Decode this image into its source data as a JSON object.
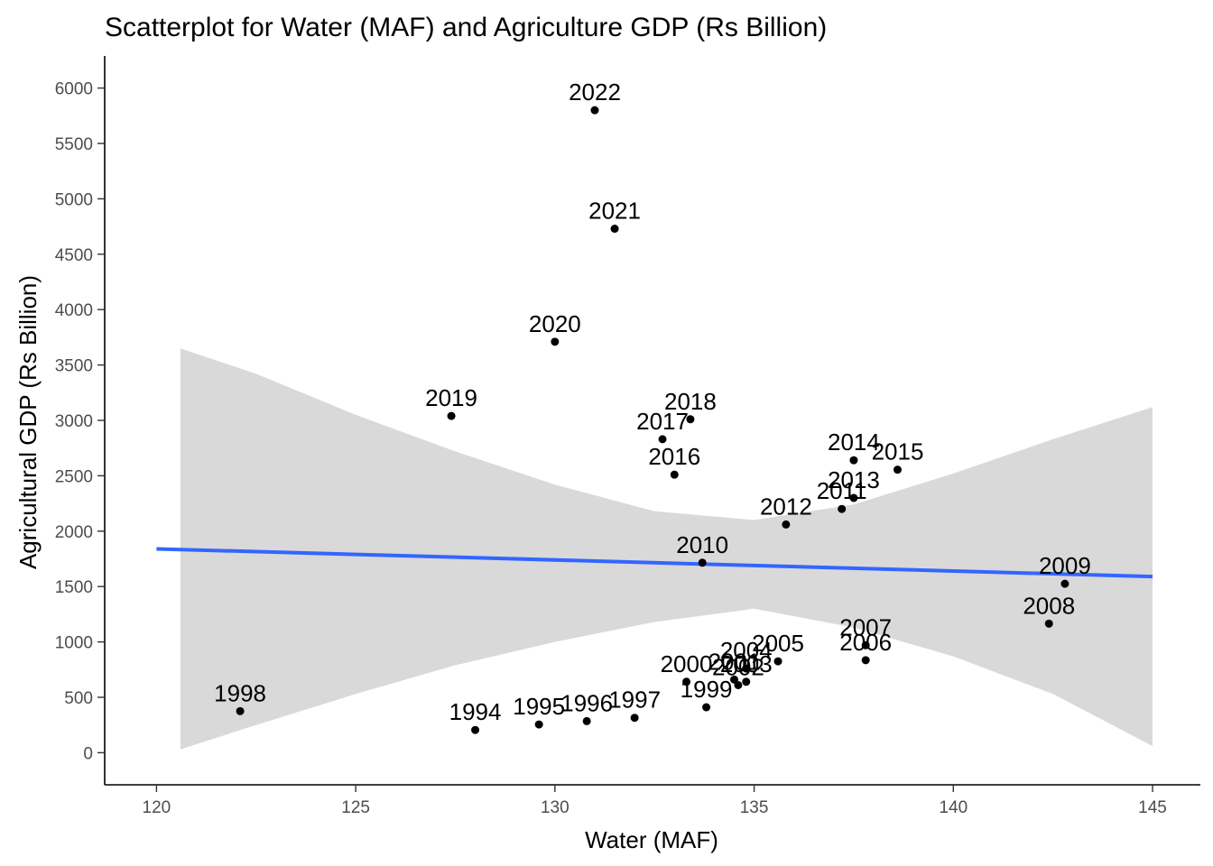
{
  "chart_data": {
    "type": "scatter",
    "title": "Scatterplot for Water (MAF) and Agriculture GDP (Rs Billion)",
    "xlabel": "Water (MAF)",
    "ylabel": "Agricultural GDP (Rs Billion)",
    "xlim": [
      118.7,
      146.2
    ],
    "ylim": [
      -290,
      6290
    ],
    "x_ticks": [
      120,
      125,
      130,
      135,
      140,
      145
    ],
    "y_ticks": [
      0,
      500,
      1000,
      1500,
      2000,
      2500,
      3000,
      3500,
      4000,
      4500,
      5000,
      5500,
      6000
    ],
    "grid": false,
    "colors": {
      "points": "#000000",
      "trend_line": "#3366FF",
      "confidence_band": "#D9D9D9",
      "axis": "#000000",
      "tick_labels": "#4D4D4D"
    },
    "points": [
      {
        "label": "1994",
        "x": 128.0,
        "y": 205
      },
      {
        "label": "1995",
        "x": 129.6,
        "y": 255
      },
      {
        "label": "1996",
        "x": 130.8,
        "y": 285
      },
      {
        "label": "1997",
        "x": 132.0,
        "y": 315
      },
      {
        "label": "1998",
        "x": 122.1,
        "y": 375
      },
      {
        "label": "1999",
        "x": 133.8,
        "y": 410
      },
      {
        "label": "2000",
        "x": 133.3,
        "y": 640
      },
      {
        "label": "2001",
        "x": 134.5,
        "y": 660
      },
      {
        "label": "2002",
        "x": 134.6,
        "y": 610
      },
      {
        "label": "2003",
        "x": 134.8,
        "y": 640
      },
      {
        "label": "2004",
        "x": 134.8,
        "y": 760
      },
      {
        "label": "2005",
        "x": 135.6,
        "y": 825
      },
      {
        "label": "2006",
        "x": 137.8,
        "y": 835
      },
      {
        "label": "2007",
        "x": 137.8,
        "y": 970
      },
      {
        "label": "2008",
        "x": 142.4,
        "y": 1165
      },
      {
        "label": "2009",
        "x": 142.8,
        "y": 1525
      },
      {
        "label": "2010",
        "x": 133.7,
        "y": 1715
      },
      {
        "label": "2011",
        "x": 137.2,
        "y": 2200
      },
      {
        "label": "2012",
        "x": 135.8,
        "y": 2060
      },
      {
        "label": "2013",
        "x": 137.5,
        "y": 2300
      },
      {
        "label": "2014",
        "x": 137.5,
        "y": 2640
      },
      {
        "label": "2015",
        "x": 138.6,
        "y": 2555
      },
      {
        "label": "2016",
        "x": 133.0,
        "y": 2510
      },
      {
        "label": "2017",
        "x": 132.7,
        "y": 2830
      },
      {
        "label": "2018",
        "x": 133.4,
        "y": 3010
      },
      {
        "label": "2019",
        "x": 127.4,
        "y": 3040
      },
      {
        "label": "2020",
        "x": 130.0,
        "y": 3710
      },
      {
        "label": "2021",
        "x": 131.5,
        "y": 4730
      },
      {
        "label": "2022",
        "x": 131.0,
        "y": 5800
      }
    ],
    "trend_line": {
      "x": [
        120.0,
        145.0
      ],
      "y": [
        1840,
        1590
      ]
    },
    "confidence_band": {
      "x": [
        120.6,
        122.5,
        125.0,
        127.5,
        130.0,
        132.5,
        135.0,
        137.5,
        140.0,
        142.5,
        145.0
      ],
      "upper": [
        3650,
        3420,
        3050,
        2720,
        2420,
        2180,
        2100,
        2240,
        2520,
        2830,
        3120
      ],
      "lower": [
        30,
        250,
        530,
        790,
        1000,
        1180,
        1300,
        1130,
        870,
        530,
        60
      ]
    }
  }
}
